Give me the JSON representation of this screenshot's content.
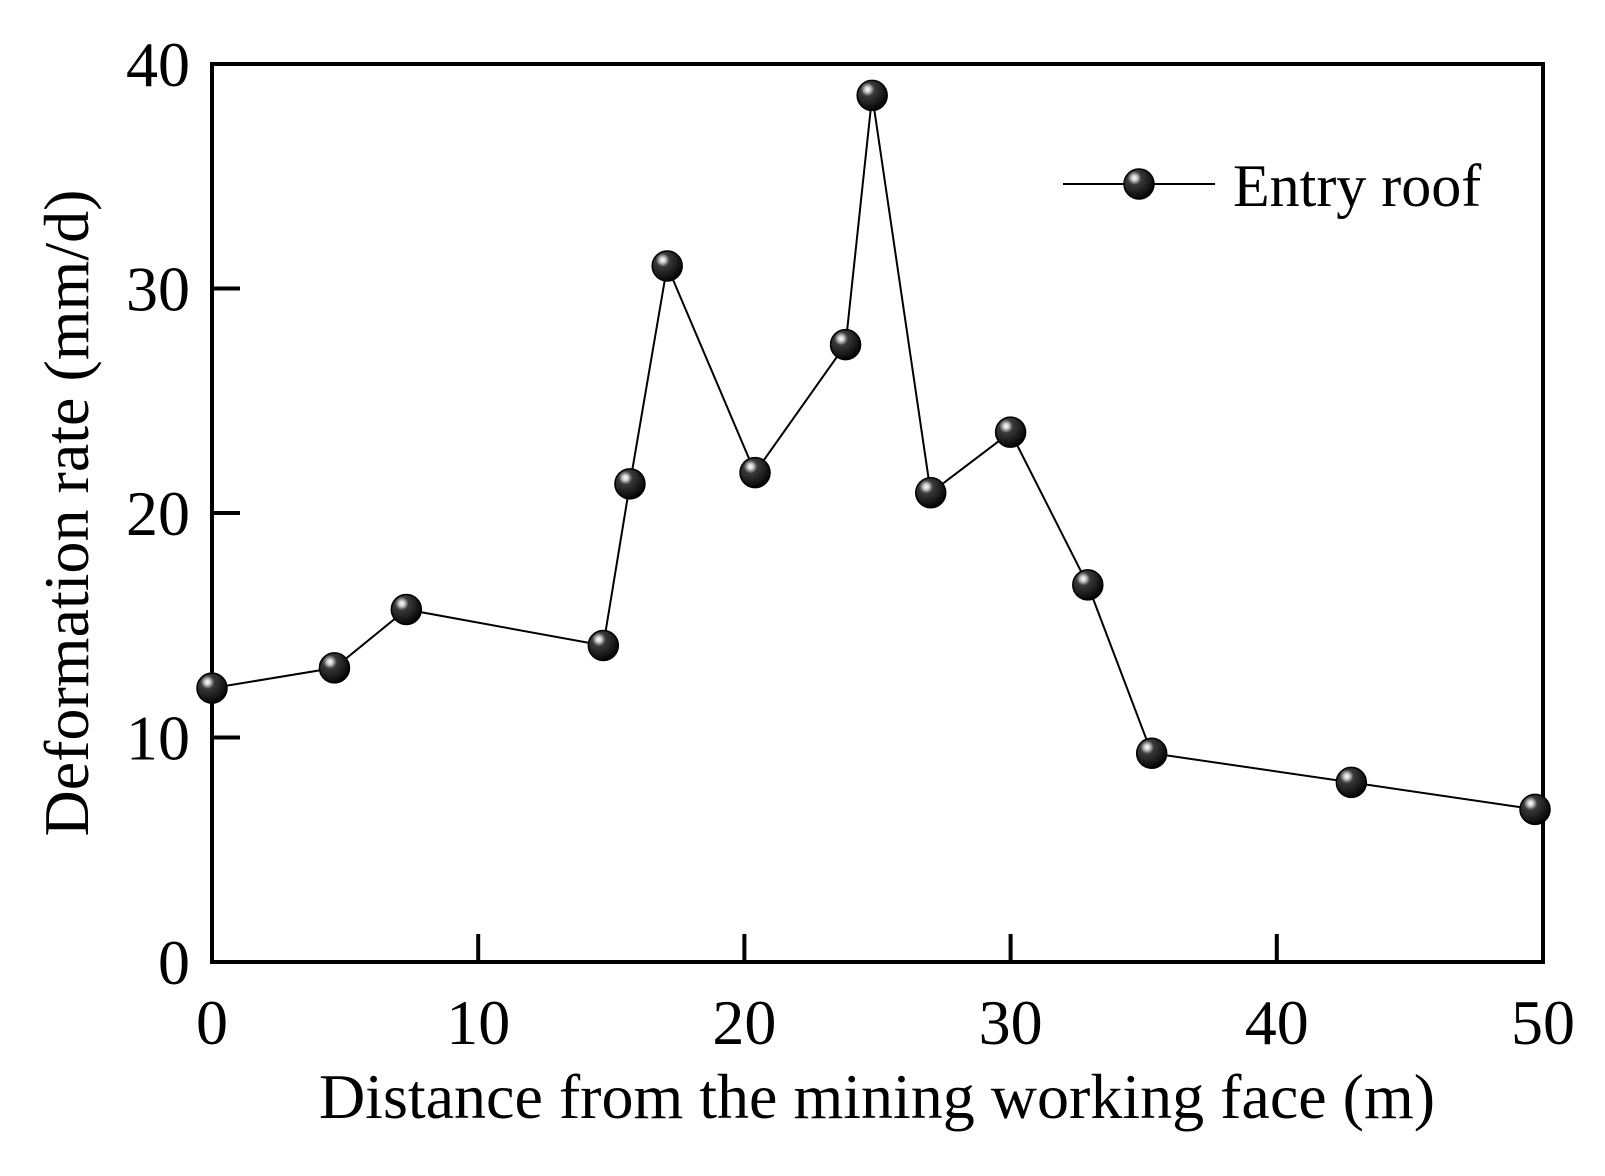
{
  "chart_data": {
    "type": "line",
    "xlabel": "Distance from the mining working face (m)",
    "ylabel": "Deformation rate (mm/d)",
    "xlim": [
      0,
      50
    ],
    "ylim": [
      0,
      40
    ],
    "x_ticks": [
      0,
      10,
      20,
      30,
      40,
      50
    ],
    "y_ticks": [
      0,
      10,
      20,
      30,
      40
    ],
    "x_tick_labels": [
      "0",
      "10",
      "20",
      "30",
      "40",
      "50"
    ],
    "y_tick_labels": [
      "0",
      "10",
      "20",
      "30",
      "40"
    ],
    "grid": false,
    "legend": {
      "position": "top-right"
    },
    "series": [
      {
        "name": "Entry roof",
        "color": "#000000",
        "marker": "sphere",
        "x": [
          0,
          4.6,
          7.3,
          14.7,
          15.7,
          17.1,
          20.4,
          23.8,
          24.8,
          27.0,
          30.0,
          32.9,
          35.3,
          42.8,
          49.7
        ],
        "y": [
          12.2,
          13.1,
          15.7,
          14.1,
          21.3,
          31.0,
          21.8,
          27.5,
          38.6,
          20.9,
          23.6,
          16.8,
          9.3,
          8.0,
          6.8
        ]
      }
    ]
  }
}
